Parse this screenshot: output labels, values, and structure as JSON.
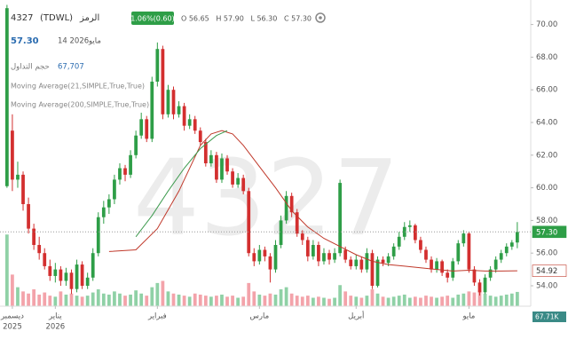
{
  "chart_data": {
    "type": "candlestick",
    "watermark": "4327",
    "header": {
      "code": "4327",
      "exchange": "(TDWL)",
      "symbol_label": "الرمز",
      "change": "1.06%(0.60)",
      "ohlc": "O 56.65   H 57.90   L 56.30   C 57.30",
      "last": "57.30",
      "date_num": "14 2026",
      "date_month": "مايو",
      "volume_label": "حجم التداول",
      "volume": "67,707"
    },
    "up_color": "#2e9e47",
    "down_color": "#d32f2f",
    "up_volume_color": "#8fd1a6",
    "down_volume_color": "#f3a3aa",
    "ylim": [
      52.75,
      71.5
    ],
    "yticks": [
      {
        "value": 54,
        "label": "54.00"
      },
      {
        "value": 56,
        "label": "56.00"
      },
      {
        "value": 58,
        "label": "58.00"
      },
      {
        "value": 60,
        "label": "60.00"
      },
      {
        "value": 62,
        "label": "62.00"
      },
      {
        "value": 64,
        "label": "64.00"
      },
      {
        "value": 66,
        "label": "66.00"
      },
      {
        "value": 68,
        "label": "68.00"
      },
      {
        "value": 70,
        "label": "70.00"
      }
    ],
    "xlim": [
      -1.3,
      97.5
    ],
    "xticks": [
      {
        "value": 1,
        "label": "ديسمبر",
        "year": "2025"
      },
      {
        "value": 9,
        "label": "يناير",
        "year": "2026"
      },
      {
        "value": 28,
        "label": "فبراير"
      },
      {
        "value": 47,
        "label": "مارس"
      },
      {
        "value": 65,
        "label": "أبريل"
      },
      {
        "value": 86,
        "label": "مايو"
      }
    ],
    "candles": [
      [
        60.1,
        71.2,
        60.0,
        71.0
      ],
      [
        63.5,
        64.5,
        59.8,
        60.5
      ],
      [
        60.5,
        61.6,
        60.0,
        60.8
      ],
      [
        60.8,
        61.0,
        58.6,
        59.0
      ],
      [
        59.0,
        59.4,
        57.2,
        57.5
      ],
      [
        57.5,
        57.8,
        56.2,
        56.5
      ],
      [
        56.5,
        57.0,
        55.6,
        56.0
      ],
      [
        56.0,
        56.3,
        55.0,
        55.2
      ],
      [
        55.2,
        55.6,
        54.3,
        54.6
      ],
      [
        54.6,
        55.4,
        54.2,
        55.0
      ],
      [
        55.0,
        55.2,
        54.0,
        54.3
      ],
      [
        54.3,
        55.1,
        54.0,
        54.8
      ],
      [
        54.8,
        55.0,
        53.5,
        53.8
      ],
      [
        53.8,
        55.6,
        53.6,
        55.3
      ],
      [
        55.3,
        55.5,
        53.8,
        54.0
      ],
      [
        54.0,
        54.8,
        53.8,
        54.5
      ],
      [
        54.5,
        56.3,
        54.3,
        56.0
      ],
      [
        56.0,
        58.5,
        55.8,
        58.2
      ],
      [
        58.2,
        59.2,
        57.8,
        58.8
      ],
      [
        58.8,
        59.6,
        58.4,
        59.3
      ],
      [
        59.3,
        60.8,
        59.0,
        60.5
      ],
      [
        60.5,
        61.5,
        60.2,
        61.2
      ],
      [
        61.2,
        61.4,
        60.4,
        60.8
      ],
      [
        60.8,
        62.3,
        60.6,
        62.0
      ],
      [
        62.0,
        63.5,
        61.8,
        63.2
      ],
      [
        63.2,
        64.6,
        63.0,
        64.2
      ],
      [
        64.2,
        64.4,
        62.8,
        63.0
      ],
      [
        63.0,
        66.8,
        62.8,
        66.5
      ],
      [
        66.5,
        68.9,
        66.2,
        68.5
      ],
      [
        68.5,
        68.7,
        64.2,
        64.5
      ],
      [
        64.5,
        66.3,
        64.3,
        66.0
      ],
      [
        66.0,
        66.2,
        64.2,
        64.5
      ],
      [
        64.5,
        65.3,
        64.3,
        65.0
      ],
      [
        65.0,
        65.2,
        63.5,
        63.8
      ],
      [
        63.8,
        64.5,
        63.6,
        64.2
      ],
      [
        64.2,
        64.4,
        63.3,
        63.5
      ],
      [
        63.5,
        63.7,
        62.6,
        62.8
      ],
      [
        62.8,
        63.0,
        61.3,
        61.5
      ],
      [
        61.5,
        62.3,
        61.3,
        62.0
      ],
      [
        62.0,
        62.2,
        60.3,
        60.5
      ],
      [
        60.5,
        62.1,
        60.3,
        61.8
      ],
      [
        61.8,
        62.0,
        60.8,
        61.0
      ],
      [
        61.0,
        61.2,
        60.0,
        60.2
      ],
      [
        60.2,
        60.9,
        60.0,
        60.6
      ],
      [
        60.6,
        60.8,
        59.6,
        59.8
      ],
      [
        59.8,
        60.0,
        55.8,
        56.0
      ],
      [
        56.0,
        56.3,
        55.2,
        55.5
      ],
      [
        55.5,
        56.5,
        55.3,
        56.2
      ],
      [
        56.2,
        56.4,
        55.5,
        55.8
      ],
      [
        55.8,
        56.0,
        54.2,
        55.0
      ],
      [
        55.0,
        56.8,
        54.8,
        56.5
      ],
      [
        56.5,
        58.3,
        56.3,
        58.0
      ],
      [
        58.0,
        59.8,
        57.8,
        59.5
      ],
      [
        59.5,
        59.7,
        58.2,
        58.5
      ],
      [
        58.5,
        58.7,
        57.0,
        57.2
      ],
      [
        57.2,
        57.4,
        56.5,
        56.8
      ],
      [
        56.8,
        57.0,
        55.5,
        55.8
      ],
      [
        55.8,
        56.8,
        55.6,
        56.5
      ],
      [
        56.5,
        56.7,
        55.2,
        55.5
      ],
      [
        55.5,
        56.3,
        55.3,
        56.0
      ],
      [
        56.0,
        56.2,
        55.3,
        55.6
      ],
      [
        55.6,
        56.3,
        55.4,
        56.0
      ],
      [
        56.0,
        60.5,
        55.8,
        60.3
      ],
      [
        56.2,
        56.4,
        55.4,
        55.6
      ],
      [
        55.6,
        55.8,
        55.0,
        55.2
      ],
      [
        55.2,
        55.9,
        55.0,
        55.6
      ],
      [
        55.6,
        55.8,
        54.8,
        55.0
      ],
      [
        55.0,
        56.3,
        54.8,
        56.0
      ],
      [
        56.0,
        56.2,
        53.8,
        54.0
      ],
      [
        54.0,
        55.8,
        53.9,
        55.6
      ],
      [
        55.6,
        55.8,
        55.2,
        55.4
      ],
      [
        55.4,
        56.0,
        55.2,
        55.8
      ],
      [
        55.8,
        56.6,
        55.6,
        56.4
      ],
      [
        56.4,
        57.3,
        56.2,
        57.0
      ],
      [
        57.0,
        57.9,
        56.8,
        57.6
      ],
      [
        57.6,
        58.0,
        57.3,
        57.7
      ],
      [
        57.7,
        57.8,
        56.6,
        56.8
      ],
      [
        56.8,
        57.0,
        56.0,
        56.2
      ],
      [
        56.2,
        56.4,
        55.4,
        55.6
      ],
      [
        55.6,
        55.8,
        54.8,
        55.0
      ],
      [
        55.0,
        55.7,
        54.8,
        55.5
      ],
      [
        55.5,
        55.6,
        54.6,
        54.8
      ],
      [
        54.8,
        55.0,
        54.2,
        54.5
      ],
      [
        54.5,
        55.7,
        54.3,
        55.5
      ],
      [
        55.5,
        56.8,
        55.3,
        56.6
      ],
      [
        56.6,
        57.4,
        56.4,
        57.2
      ],
      [
        57.2,
        57.3,
        54.8,
        55.0
      ],
      [
        55.0,
        55.2,
        54.0,
        54.2
      ],
      [
        54.2,
        54.4,
        53.4,
        53.6
      ],
      [
        53.6,
        54.7,
        53.5,
        54.5
      ],
      [
        54.5,
        55.2,
        54.3,
        55.0
      ],
      [
        55.0,
        55.8,
        54.8,
        55.6
      ],
      [
        55.6,
        56.2,
        55.4,
        56.0
      ],
      [
        56.0,
        56.6,
        55.8,
        56.4
      ],
      [
        56.4,
        56.8,
        56.2,
        56.65
      ],
      [
        56.65,
        57.9,
        56.3,
        57.3
      ]
    ],
    "volume": [
      340000,
      150000,
      90000,
      70000,
      60000,
      80000,
      55000,
      65000,
      50000,
      45000,
      70000,
      55000,
      60000,
      50000,
      45000,
      50000,
      65000,
      80000,
      60000,
      55000,
      70000,
      60000,
      50000,
      55000,
      75000,
      60000,
      50000,
      90000,
      110000,
      120000,
      70000,
      60000,
      55000,
      50000,
      45000,
      60000,
      55000,
      50000,
      45000,
      50000,
      55000,
      45000,
      50000,
      40000,
      45000,
      110000,
      70000,
      55000,
      50000,
      60000,
      55000,
      80000,
      90000,
      60000,
      50000,
      45000,
      50000,
      40000,
      45000,
      40000,
      35000,
      40000,
      100000,
      70000,
      50000,
      45000,
      40000,
      50000,
      80000,
      60000,
      45000,
      40000,
      45000,
      50000,
      55000,
      40000,
      45000,
      40000,
      50000,
      45000,
      40000,
      45000,
      50000,
      40000,
      55000,
      60000,
      70000,
      65000,
      75000,
      60000,
      50000,
      45000,
      50000,
      55000,
      60000,
      67707
    ],
    "vlim": [
      0,
      400000
    ],
    "ma": [
      {
        "name": "Moving Average(21,SIMPLE,True,True)",
        "color": "#c0392b",
        "x": [
          19,
          24,
          28,
          32,
          36,
          38,
          40,
          42,
          44,
          47,
          50,
          53,
          56,
          59,
          62,
          65,
          68,
          71,
          74,
          77,
          80,
          83,
          86,
          89,
          92,
          95
        ],
        "values": [
          56.1,
          56.2,
          57.5,
          59.8,
          62.6,
          63.3,
          63.5,
          63.3,
          62.6,
          61.3,
          60.0,
          58.6,
          57.6,
          56.9,
          56.4,
          55.9,
          55.5,
          55.3,
          55.2,
          55.1,
          55.0,
          54.9,
          54.95,
          54.9,
          54.9,
          54.92
        ]
      },
      {
        "name": "Moving Average(200,SIMPLE,True,True)",
        "color": "#3e9b4f",
        "x": [
          24,
          27,
          30,
          33,
          36,
          39,
          41
        ],
        "values": [
          57.0,
          58.3,
          59.8,
          61.2,
          62.4,
          63.2,
          63.5
        ]
      }
    ],
    "price_labels": [
      {
        "value": 57.3,
        "label": "57.30",
        "color": "#2e9e47"
      },
      {
        "value": 54.92,
        "label": "54.92",
        "color": "#c0392b"
      }
    ],
    "volume_tag": {
      "value": 67707,
      "label": "67.71K"
    }
  }
}
